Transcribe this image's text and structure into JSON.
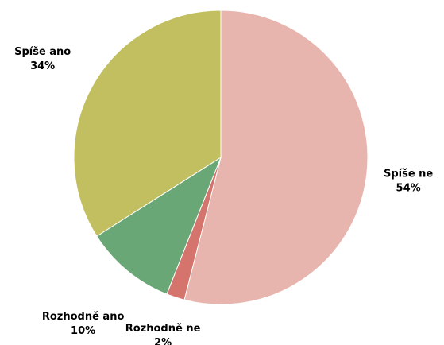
{
  "chart_data": {
    "type": "pie",
    "categories": [
      "Spíše ne",
      "Rozhodně ne",
      "Rozhodně ano",
      "Spíše ano"
    ],
    "values": [
      54,
      2,
      10,
      34
    ],
    "value_labels": [
      "54%",
      "2%",
      "10%",
      "34%"
    ],
    "colors": [
      "#e8b5ae",
      "#d4746c",
      "#69a876",
      "#c2bf60"
    ]
  }
}
